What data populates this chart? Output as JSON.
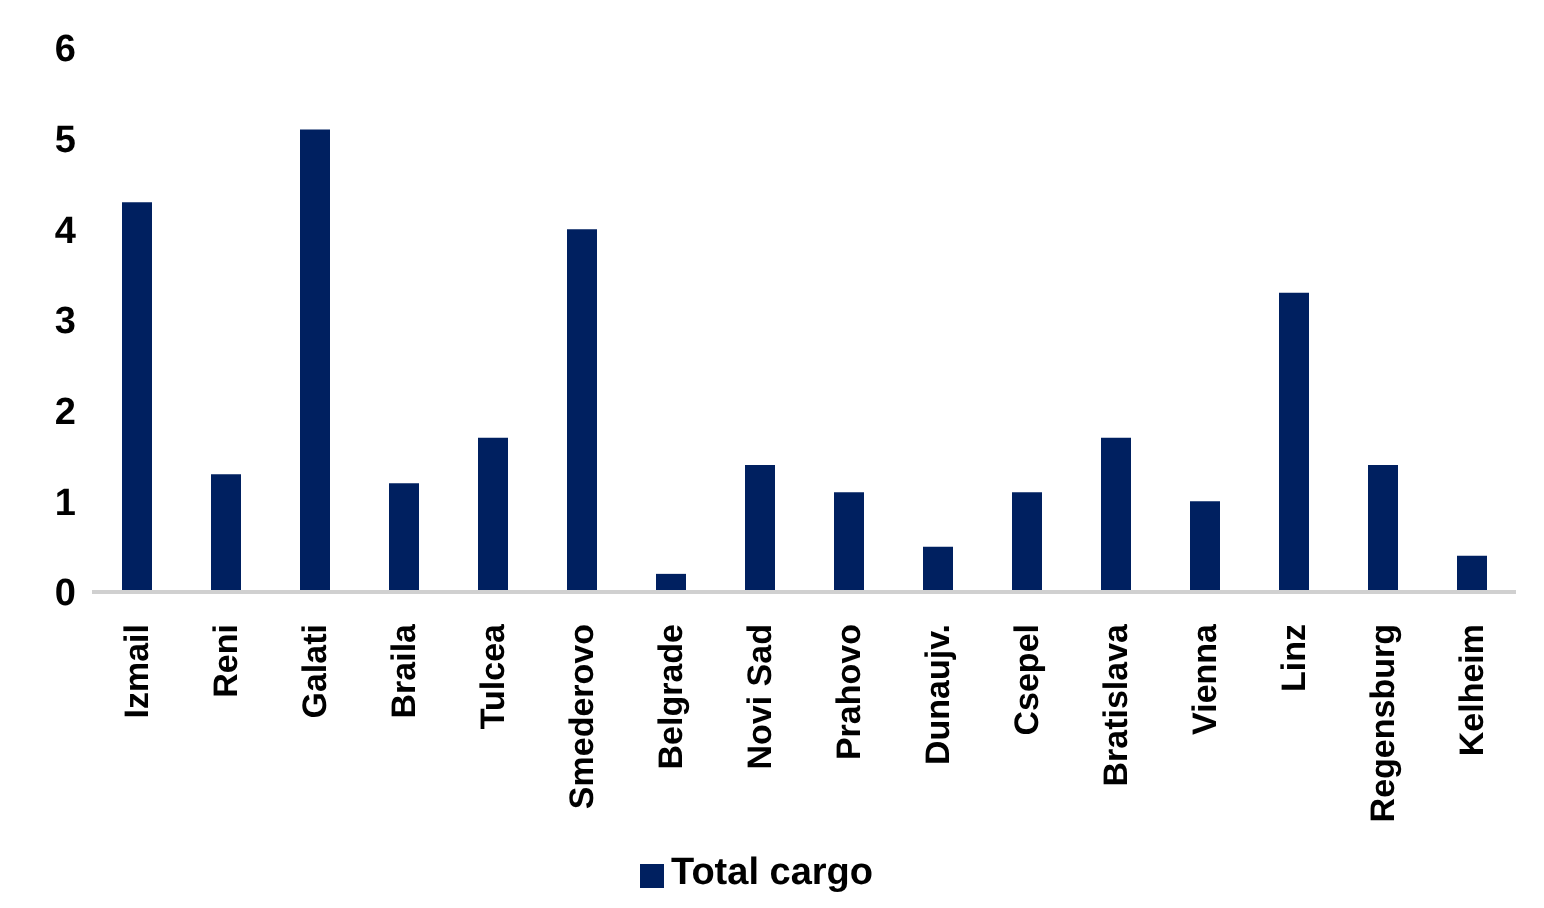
{
  "chart_data": {
    "type": "bar",
    "categories": [
      "Izmail",
      "Reni",
      "Galati",
      "Braila",
      "Tulcea",
      "Smederovo",
      "Belgrade",
      "Novi Sad",
      "Prahovo",
      "Dunaujv.",
      "Csepel",
      "Bratislava",
      "Vienna",
      "Linz",
      "Regensburg",
      "Kelheim"
    ],
    "series": [
      {
        "name": "Total cargo",
        "color": "#002060",
        "values": [
          4.3,
          1.3,
          5.1,
          1.2,
          1.7,
          4.0,
          0.2,
          1.4,
          1.1,
          0.5,
          1.1,
          1.7,
          1.0,
          3.3,
          1.4,
          0.4
        ]
      }
    ],
    "ylim": [
      0,
      6
    ],
    "yticks": [
      0,
      1,
      2,
      3,
      4,
      5,
      6
    ],
    "grid": false,
    "legend": "bottom"
  }
}
